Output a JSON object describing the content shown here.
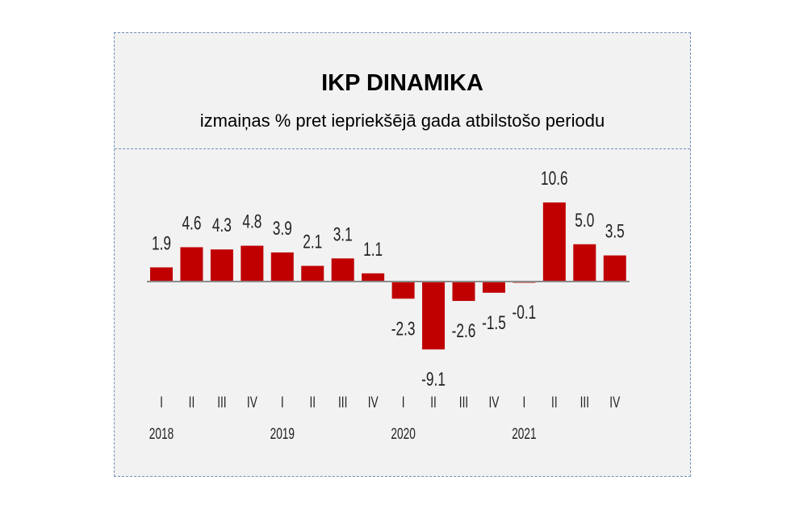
{
  "chart_data": {
    "type": "bar",
    "title": "IKP DINAMIKA",
    "subtitle": "izmaiņas % pret iepriekšējā gada atbilstošo periodu",
    "categories": [
      "I",
      "II",
      "III",
      "IV",
      "I",
      "II",
      "III",
      "IV",
      "I",
      "II",
      "III",
      "IV",
      "I",
      "II",
      "III",
      "IV"
    ],
    "years": [
      {
        "label": "2018",
        "index": 0
      },
      {
        "label": "2019",
        "index": 4
      },
      {
        "label": "2020",
        "index": 8
      },
      {
        "label": "2021",
        "index": 12
      }
    ],
    "values": [
      1.9,
      4.6,
      4.3,
      4.8,
      3.9,
      2.1,
      3.1,
      1.1,
      -2.3,
      -9.1,
      -2.6,
      -1.5,
      -0.1,
      10.6,
      5.0,
      3.5
    ],
    "value_labels": [
      "1.9",
      "4.6",
      "4.3",
      "4.8",
      "3.9",
      "2.1",
      "3.1",
      "1.1",
      "-2.3",
      "-9.1",
      "-2.6",
      "-1.5",
      "-0.1",
      "10.6",
      "5.0",
      "3.5"
    ],
    "xlabel": "",
    "ylabel": "",
    "ylim": [
      -9.1,
      10.6
    ],
    "grid": false,
    "bar_color": "#c00000",
    "axis_color": "#8c8c8c"
  }
}
